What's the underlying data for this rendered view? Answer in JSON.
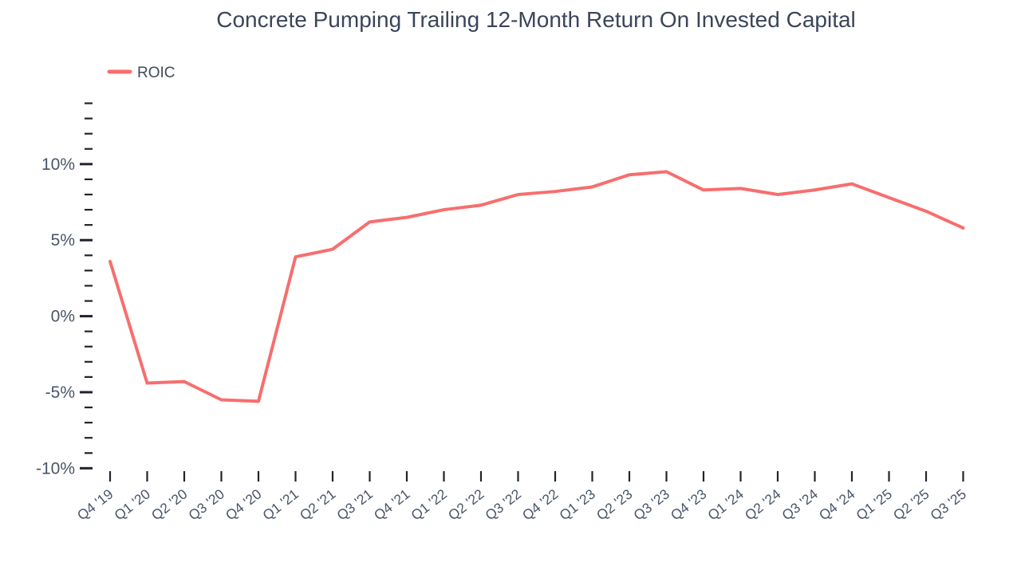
{
  "title": "Concrete Pumping Trailing 12-Month Return On Invested Capital",
  "legend": {
    "label": "ROIC",
    "color": "#f76e6e"
  },
  "colors": {
    "series_line": "#f76e6e",
    "title_text": "#3b4559",
    "axis_label_text": "#4a5568",
    "tick_mark": "#20242c",
    "background": "#ffffff"
  },
  "chart_data": {
    "type": "line",
    "title": "Concrete Pumping Trailing 12-Month Return On Invested Capital",
    "categories": [
      "Q4 '19",
      "Q1 '20",
      "Q2 '20",
      "Q3 '20",
      "Q4 '20",
      "Q1 '21",
      "Q2 '21",
      "Q3 '21",
      "Q4 '21",
      "Q1 '22",
      "Q2 '22",
      "Q3 '22",
      "Q4 '22",
      "Q1 '23",
      "Q2 '23",
      "Q3 '23",
      "Q4 '23",
      "Q1 '24",
      "Q2 '24",
      "Q3 '24",
      "Q4 '24",
      "Q1 '25",
      "Q2 '25",
      "Q3 '25"
    ],
    "series": [
      {
        "name": "ROIC",
        "color": "#f76e6e",
        "values": [
          3.6,
          -4.4,
          -4.3,
          -5.5,
          -5.6,
          3.9,
          4.4,
          6.2,
          6.5,
          7.0,
          7.3,
          8.0,
          8.2,
          8.5,
          9.3,
          9.5,
          8.3,
          8.4,
          8.0,
          8.3,
          8.7,
          7.8,
          6.9,
          5.8
        ]
      }
    ],
    "xlabel": "",
    "ylabel": "",
    "unit": "%",
    "y_major_ticks": {
      "values": [
        10,
        5,
        0,
        -5,
        -10
      ],
      "labels": [
        "10%",
        "5%",
        "0%",
        "-5%",
        "-10%"
      ]
    },
    "y_minor_tick_step": 1,
    "ylim": [
      -10,
      14
    ],
    "grid": false,
    "axis_line": false,
    "legend_position": "top-left"
  }
}
